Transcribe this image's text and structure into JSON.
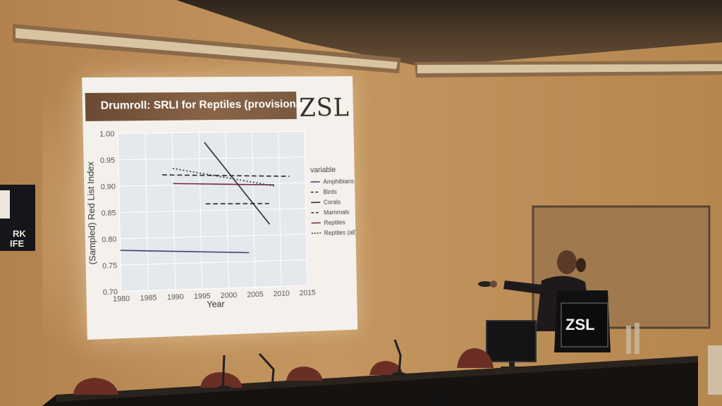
{
  "slide": {
    "title": "Drumroll: SRLI for Reptiles (provisional)",
    "logo": "ZSL"
  },
  "podium": {
    "logo": "ZSL"
  },
  "wall_sign": {
    "fragments": [
      "RK",
      "IFE"
    ]
  },
  "chart_data": {
    "type": "line",
    "xlabel": "Year",
    "ylabel": "(Sampled) Red List Index",
    "xlim": [
      1980,
      2015
    ],
    "ylim": [
      0.7,
      1.0
    ],
    "x_ticks": [
      "1980",
      "1985",
      "1990",
      "1995",
      "2000",
      "2005",
      "2010",
      "2015"
    ],
    "y_ticks": [
      "0.70",
      "0.75",
      "0.80",
      "0.85",
      "0.90",
      "0.95",
      "1.00"
    ],
    "grid": true,
    "legend_title": "variable",
    "legend_position": "right",
    "series": [
      {
        "name": "Amphibians",
        "style": "solid",
        "color": "#3a3a6a",
        "x": [
          1980,
          2004
        ],
        "y": [
          0.778,
          0.767
        ]
      },
      {
        "name": "Birds",
        "style": "dashed",
        "color": "#222222",
        "x": [
          1988,
          2012
        ],
        "y": [
          0.92,
          0.913
        ]
      },
      {
        "name": "Corals",
        "style": "solid",
        "color": "#222222",
        "x": [
          1996,
          2008
        ],
        "y": [
          0.981,
          0.821
        ]
      },
      {
        "name": "Mammals",
        "style": "dashed",
        "color": "#222222",
        "x": [
          1996,
          2008
        ],
        "y": [
          0.863,
          0.861
        ]
      },
      {
        "name": "Reptiles",
        "style": "solid",
        "color": "#6a2040",
        "x": [
          1990,
          2009
        ],
        "y": [
          0.903,
          0.897
        ]
      },
      {
        "name": "Reptiles (all)",
        "style": "dotted",
        "color": "#222222",
        "x": [
          1990,
          2009
        ],
        "y": [
          0.932,
          0.895
        ]
      }
    ]
  }
}
